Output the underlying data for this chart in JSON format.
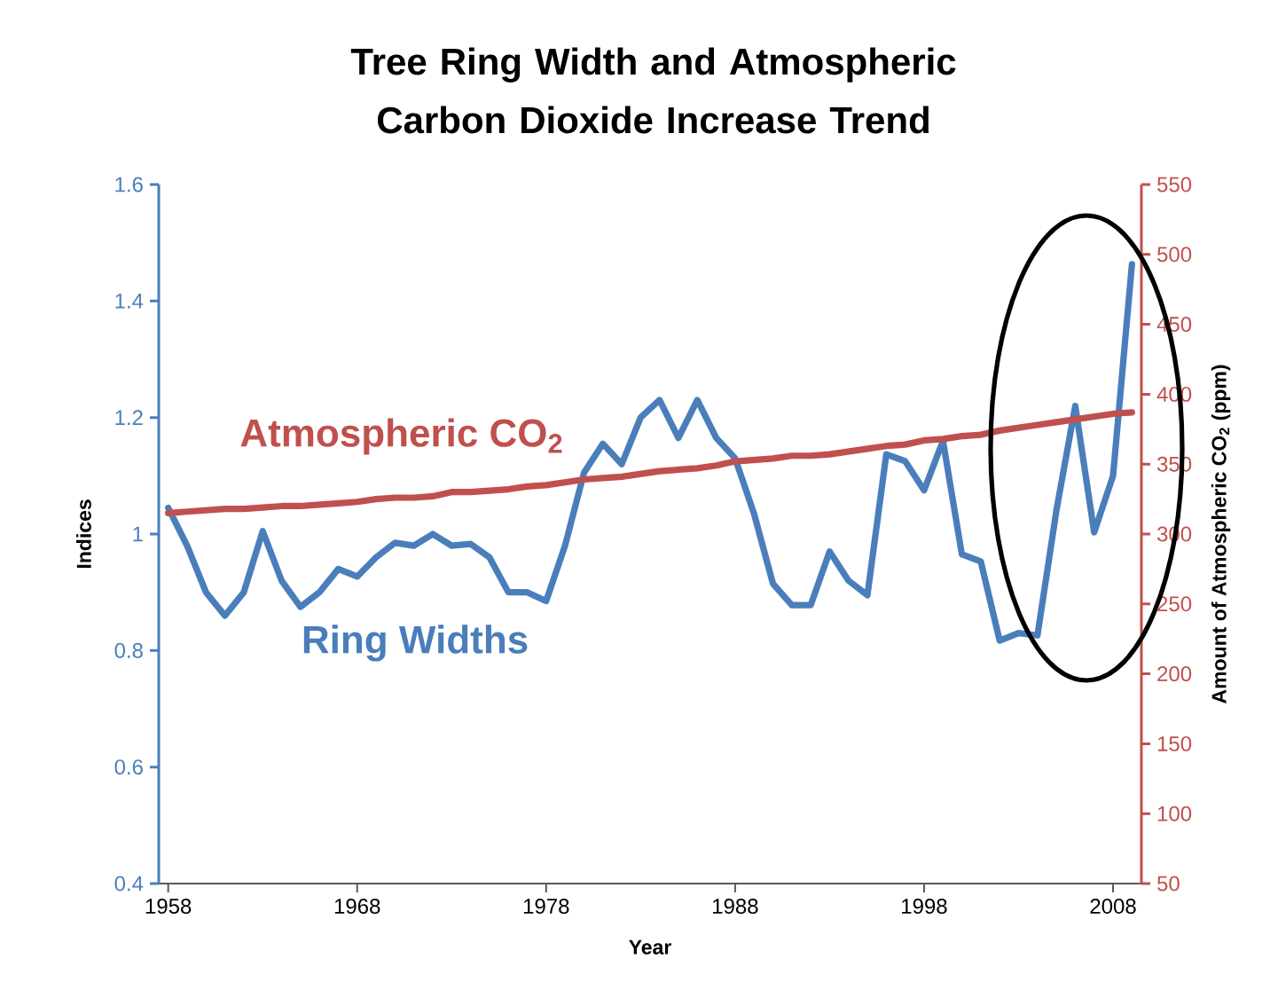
{
  "chart_data": {
    "type": "line",
    "title": "Tree Ring Width and Atmospheric Carbon Dioxide Increase Trend",
    "xlabel": "Year",
    "ylabel": "Indices",
    "y2label": "Amount of Atmospheric CO$_{2}$ (ppm)",
    "x": [
      1958,
      1959,
      1960,
      1961,
      1962,
      1963,
      1964,
      1965,
      1966,
      1967,
      1968,
      1969,
      1970,
      1971,
      1972,
      1973,
      1974,
      1975,
      1976,
      1977,
      1978,
      1979,
      1980,
      1981,
      1982,
      1983,
      1984,
      1985,
      1986,
      1987,
      1988,
      1989,
      1990,
      1991,
      1992,
      1993,
      1994,
      1995,
      1996,
      1997,
      1998,
      1999,
      2000,
      2001,
      2002,
      2003,
      2004,
      2005,
      2006,
      2007,
      2008,
      2009
    ],
    "xlim": [
      1957.5,
      2009.5
    ],
    "xticks": [
      1958,
      1968,
      1978,
      1988,
      1998,
      2008
    ],
    "ylim": [
      0.4,
      1.6
    ],
    "yticks": [
      0.4,
      0.6,
      0.8,
      1,
      1.2,
      1.4,
      1.6
    ],
    "y2lim": [
      50,
      550
    ],
    "y2ticks": [
      50,
      100,
      150,
      200,
      250,
      300,
      350,
      400,
      450,
      500,
      550
    ],
    "series": [
      {
        "name": "Ring Widths",
        "color": "#4a7ebb",
        "values": [
          1.045,
          0.98,
          0.9,
          0.86,
          0.9,
          1.005,
          0.92,
          0.875,
          0.9,
          0.94,
          0.927,
          0.96,
          0.985,
          0.98,
          1.0,
          0.98,
          0.983,
          0.96,
          0.9,
          0.9,
          0.885,
          0.98,
          1.105,
          1.155,
          1.12,
          1.2,
          1.23,
          1.165,
          1.23,
          1.165,
          1.13,
          1.035,
          0.915,
          0.878,
          0.878,
          0.97,
          0.92,
          0.895,
          1.137,
          1.125,
          1.075,
          1.16,
          0.965,
          0.953,
          0.817,
          0.83,
          0.826,
          1.04,
          1.22,
          1.003,
          1.1,
          1.463
        ]
      },
      {
        "name": "Atmospheric CO$_{2}$",
        "color": "#c0504d",
        "axis": "y2",
        "values": [
          315,
          316,
          317,
          318,
          318,
          319,
          320,
          320,
          321,
          322,
          323,
          325,
          326,
          326,
          327,
          330,
          330,
          331,
          332,
          334,
          335,
          337,
          339,
          340,
          341,
          343,
          345,
          346,
          347,
          349,
          352,
          353,
          354,
          356,
          356,
          357,
          359,
          361,
          363,
          364,
          367,
          368,
          370,
          371,
          374,
          376,
          378,
          380,
          382,
          384,
          386,
          387
        ]
      }
    ]
  }
}
